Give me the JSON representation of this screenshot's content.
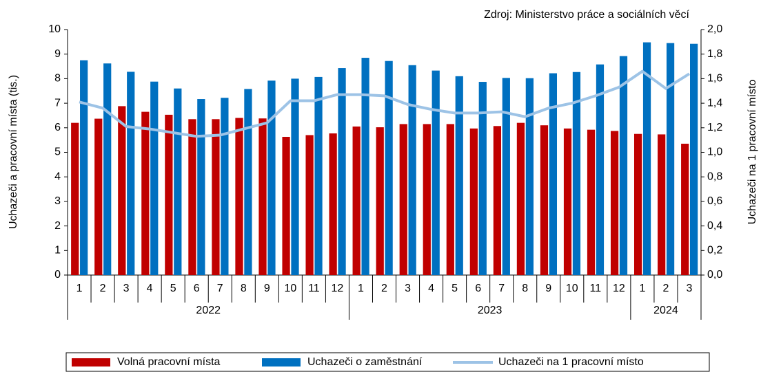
{
  "chart_data": {
    "type": "bar",
    "source": "Zdroj: Ministerstvo práce a sociálních věcí",
    "y_label": "Uchazeči a pracovní místa (tis.)",
    "y2_label": "Uchazeči na 1 pracovní místo",
    "category_groups": [
      {
        "name": "2022",
        "categories": [
          "1",
          "2",
          "3",
          "4",
          "5",
          "6",
          "7",
          "8",
          "9",
          "10",
          "11",
          "12"
        ]
      },
      {
        "name": "2023",
        "categories": [
          "1",
          "2",
          "3",
          "4",
          "5",
          "6",
          "7",
          "8",
          "9",
          "10",
          "11",
          "12"
        ]
      },
      {
        "name": "2024",
        "categories": [
          "1",
          "2",
          "3"
        ]
      }
    ],
    "series": [
      {
        "name": "Volná pracovní místa",
        "type": "bar",
        "color": "#c00000",
        "values": [
          6.2,
          6.37,
          6.88,
          6.65,
          6.53,
          6.35,
          6.35,
          6.4,
          6.38,
          5.63,
          5.7,
          5.77,
          6.05,
          6.02,
          6.15,
          6.15,
          6.15,
          5.97,
          6.07,
          6.2,
          6.1,
          5.97,
          5.92,
          5.87,
          5.75,
          5.73,
          5.35
        ]
      },
      {
        "name": "Uchazeči o zaměstnání",
        "type": "bar",
        "color": "#0070c0",
        "values": [
          8.75,
          8.62,
          8.28,
          7.88,
          7.6,
          7.17,
          7.22,
          7.58,
          7.92,
          8.0,
          8.07,
          8.43,
          8.85,
          8.72,
          8.55,
          8.33,
          8.1,
          7.87,
          8.03,
          8.02,
          8.22,
          8.27,
          8.58,
          8.92,
          9.48,
          9.45,
          9.42
        ]
      },
      {
        "name": "Uchazeči na 1 pracovní místo",
        "type": "line",
        "axis": "y2",
        "color": "#9dc3e6",
        "values": [
          1.41,
          1.36,
          1.21,
          1.19,
          1.16,
          1.13,
          1.14,
          1.19,
          1.24,
          1.42,
          1.42,
          1.47,
          1.47,
          1.46,
          1.39,
          1.35,
          1.32,
          1.32,
          1.33,
          1.29,
          1.36,
          1.4,
          1.46,
          1.53,
          1.66,
          1.52,
          1.64
        ]
      }
    ],
    "ylim": [
      0,
      10
    ],
    "yticks": [
      0,
      1,
      2,
      3,
      4,
      5,
      6,
      7,
      8,
      9,
      10
    ],
    "y2lim": [
      0,
      2
    ],
    "y2ticks": [
      {
        "value": 0,
        "label": "0,0"
      },
      {
        "value": 0.2,
        "label": "0,2"
      },
      {
        "value": 0.4,
        "label": "0,4"
      },
      {
        "value": 0.6,
        "label": "0,6"
      },
      {
        "value": 0.8,
        "label": "0,8"
      },
      {
        "value": 1,
        "label": "1,0"
      },
      {
        "value": 1.2,
        "label": "1,2"
      },
      {
        "value": 1.4,
        "label": "1,4"
      },
      {
        "value": 1.6,
        "label": "1,6"
      },
      {
        "value": 1.8,
        "label": "1,8"
      },
      {
        "value": 2,
        "label": "2,0"
      }
    ],
    "legend": "bottom",
    "grid": false
  }
}
